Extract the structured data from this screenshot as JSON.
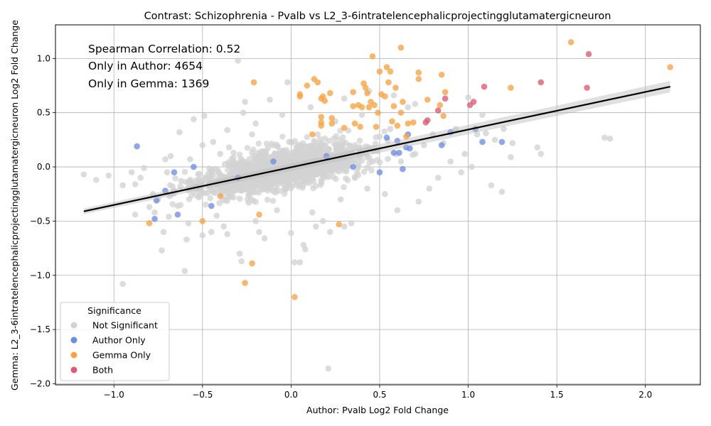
{
  "chart_data": {
    "type": "scatter",
    "title": "Contrast: Schizophrenia - Pvalb vs L2_3-6intratelencephalicprojectingglutamatergicneuron",
    "xlabel": "Author: Pvalb Log2 Fold Change",
    "ylabel": "Gemma: L2_3-6intratelencephalicprojectingglutamatergicneuron Log2 Fold Change",
    "xlim": [
      -1.33,
      2.31
    ],
    "ylim": [
      -2.01,
      1.31
    ],
    "x_ticks": [
      -1.0,
      -0.5,
      0.0,
      0.5,
      1.0,
      1.5,
      2.0
    ],
    "x_tick_labels": [
      "−1.0",
      "−0.5",
      "0.0",
      "0.5",
      "1.0",
      "1.5",
      "2.0"
    ],
    "y_ticks": [
      -2.0,
      -1.5,
      -1.0,
      -0.5,
      0.0,
      0.5,
      1.0
    ],
    "y_tick_labels": [
      "−2.0",
      "−1.5",
      "−1.0",
      "−0.5",
      "0.0",
      "0.5",
      "1.0"
    ],
    "grid": true,
    "annotations": [
      "Spearman Correlation: 0.52",
      "Only in Author: 4654",
      "Only in Gemma: 1369"
    ],
    "legend": {
      "title": "Significance",
      "placement": "lower-left",
      "entries": [
        {
          "label": "Not Significant",
          "color": "#d3d3d3"
        },
        {
          "label": "Author Only",
          "color": "#6f8de0"
        },
        {
          "label": "Gemma Only",
          "color": "#f7a345"
        },
        {
          "label": "Both",
          "color": "#dc5a75"
        }
      ]
    },
    "regression_line": {
      "x": [
        -1.17,
        2.14
      ],
      "y": [
        -0.41,
        0.74
      ],
      "color": "#000000"
    },
    "series": [
      {
        "name": "Not Significant",
        "color": "#d3d3d3",
        "points": [
          [
            -1.17,
            -0.07
          ],
          [
            -1.1,
            -0.12
          ],
          [
            -1.03,
            -0.08
          ],
          [
            -0.95,
            -0.17
          ],
          [
            -0.95,
            -1.08
          ],
          [
            -0.88,
            -0.44
          ],
          [
            -0.88,
            -0.16
          ],
          [
            -0.85,
            -0.1
          ],
          [
            -0.83,
            -0.01
          ],
          [
            -0.8,
            -0.37
          ],
          [
            -0.78,
            -0.25
          ],
          [
            -0.75,
            -0.3
          ],
          [
            -0.73,
            -0.77
          ],
          [
            -0.72,
            -0.6
          ],
          [
            -0.71,
            0.07
          ],
          [
            -0.69,
            -0.46
          ],
          [
            -0.66,
            -0.22
          ],
          [
            -0.64,
            -0.36
          ],
          [
            -0.63,
            0.32
          ],
          [
            -0.62,
            -0.13
          ],
          [
            -0.6,
            -0.96
          ],
          [
            -0.59,
            -0.67
          ],
          [
            -0.57,
            0.07
          ],
          [
            -0.55,
            0.44
          ],
          [
            -0.52,
            -0.28
          ],
          [
            -0.5,
            -0.63
          ],
          [
            -0.49,
            0.47
          ],
          [
            -0.47,
            -0.1
          ],
          [
            -0.44,
            0.23
          ],
          [
            -0.42,
            -0.45
          ],
          [
            -0.4,
            0.12
          ],
          [
            -0.38,
            -0.55
          ],
          [
            -0.35,
            0.18
          ],
          [
            -0.33,
            -0.2
          ],
          [
            -0.3,
            0.98
          ],
          [
            -0.29,
            -0.8
          ],
          [
            -0.28,
            -0.87
          ],
          [
            -0.27,
            0.5
          ],
          [
            -0.26,
            0.6
          ],
          [
            -0.24,
            -0.33
          ],
          [
            -0.22,
            0.3
          ],
          [
            -0.2,
            -0.5
          ],
          [
            -0.17,
            0.1
          ],
          [
            -0.15,
            -0.66
          ],
          [
            -0.12,
            0.62
          ],
          [
            -0.1,
            0.2
          ],
          [
            -0.08,
            -0.4
          ],
          [
            -0.06,
            0.08
          ],
          [
            -0.02,
            0.78
          ],
          [
            0.0,
            -0.61
          ],
          [
            0.02,
            -0.88
          ],
          [
            0.05,
            -0.88
          ],
          [
            0.07,
            -0.72
          ],
          [
            0.08,
            -0.76
          ],
          [
            0.1,
            0.18
          ],
          [
            0.12,
            -0.42
          ],
          [
            0.15,
            0.3
          ],
          [
            0.18,
            -0.5
          ],
          [
            0.2,
            0.1
          ],
          [
            0.21,
            -1.86
          ],
          [
            0.22,
            -0.6
          ],
          [
            0.25,
            0.42
          ],
          [
            0.28,
            -0.3
          ],
          [
            0.3,
            -0.55
          ],
          [
            0.33,
            0.2
          ],
          [
            0.36,
            -0.1
          ],
          [
            0.4,
            0.48
          ],
          [
            0.43,
            -0.2
          ],
          [
            0.46,
            0.05
          ],
          [
            0.5,
            0.28
          ],
          [
            0.53,
            -0.25
          ],
          [
            0.56,
            0.35
          ],
          [
            0.6,
            -0.4
          ],
          [
            0.62,
            0.05
          ],
          [
            0.66,
            0.55
          ],
          [
            0.7,
            0.12
          ],
          [
            0.72,
            -0.32
          ],
          [
            0.75,
            0.2
          ],
          [
            0.78,
            -0.2
          ],
          [
            0.8,
            0.3
          ],
          [
            0.83,
            -0.1
          ],
          [
            0.86,
            0.22
          ],
          [
            0.9,
            0.05
          ],
          [
            0.93,
            0.35
          ],
          [
            0.96,
            -0.05
          ],
          [
            0.98,
            0.12
          ],
          [
            1.0,
            0.64
          ],
          [
            1.02,
            0.0
          ],
          [
            1.05,
            0.3
          ],
          [
            1.08,
            0.48
          ],
          [
            1.1,
            0.31
          ],
          [
            1.13,
            -0.17
          ],
          [
            1.15,
            0.25
          ],
          [
            1.19,
            -0.23
          ],
          [
            1.2,
            0.35
          ],
          [
            1.24,
            0.09
          ],
          [
            1.25,
            0.22
          ],
          [
            1.39,
            0.18
          ],
          [
            1.41,
            0.12
          ],
          [
            1.77,
            0.27
          ],
          [
            1.8,
            0.26
          ],
          [
            -0.9,
            -0.05
          ],
          [
            -0.77,
            -0.42
          ],
          [
            -0.7,
            -0.05
          ],
          [
            -0.58,
            -0.52
          ],
          [
            -0.45,
            -0.6
          ],
          [
            -0.36,
            -0.62
          ],
          [
            -0.18,
            -0.6
          ],
          [
            0.14,
            -0.55
          ],
          [
            0.34,
            -0.52
          ],
          [
            -0.68,
            0.1
          ],
          [
            -0.5,
            0.2
          ],
          [
            -0.36,
            0.34
          ],
          [
            -0.2,
            0.4
          ],
          [
            -0.05,
            0.48
          ],
          [
            0.11,
            0.55
          ],
          [
            0.3,
            0.63
          ],
          [
            0.44,
            0.7
          ],
          [
            0.58,
            0.66
          ],
          [
            0.7,
            0.58
          ]
        ]
      },
      {
        "name": "Author Only",
        "color": "#6f8de0",
        "points": [
          [
            -0.87,
            0.19
          ],
          [
            -0.77,
            -0.48
          ],
          [
            -0.76,
            -0.31
          ],
          [
            -0.71,
            -0.22
          ],
          [
            -0.66,
            -0.05
          ],
          [
            -0.64,
            -0.44
          ],
          [
            -0.55,
            0.0
          ],
          [
            -0.45,
            -0.36
          ],
          [
            -0.3,
            -0.1
          ],
          [
            -0.1,
            0.05
          ],
          [
            0.2,
            0.1
          ],
          [
            0.35,
            0.0
          ],
          [
            0.5,
            -0.05
          ],
          [
            0.54,
            0.27
          ],
          [
            0.58,
            0.13
          ],
          [
            0.6,
            0.24
          ],
          [
            0.61,
            0.13
          ],
          [
            0.63,
            -0.02
          ],
          [
            0.65,
            0.18
          ],
          [
            0.66,
            0.3
          ],
          [
            0.67,
            0.17
          ],
          [
            0.85,
            0.2
          ],
          [
            0.9,
            0.32
          ],
          [
            1.04,
            0.35
          ],
          [
            1.08,
            0.23
          ],
          [
            1.19,
            0.23
          ]
        ]
      },
      {
        "name": "Gemma Only",
        "color": "#f7a345",
        "points": [
          [
            -0.8,
            -0.52
          ],
          [
            -0.5,
            -0.5
          ],
          [
            -0.4,
            -0.27
          ],
          [
            -0.26,
            -1.07
          ],
          [
            -0.22,
            -0.89
          ],
          [
            -0.21,
            0.78
          ],
          [
            -0.18,
            -0.44
          ],
          [
            0.02,
            -1.2
          ],
          [
            0.05,
            0.65
          ],
          [
            0.05,
            0.67
          ],
          [
            0.09,
            0.75
          ],
          [
            0.12,
            0.3
          ],
          [
            0.13,
            0.81
          ],
          [
            0.15,
            0.78
          ],
          [
            0.17,
            0.63
          ],
          [
            0.17,
            0.46
          ],
          [
            0.17,
            0.41
          ],
          [
            0.17,
            0.38
          ],
          [
            0.18,
            0.65
          ],
          [
            0.19,
            0.61
          ],
          [
            0.22,
            0.68
          ],
          [
            0.23,
            0.45
          ],
          [
            0.23,
            0.4
          ],
          [
            0.27,
            -0.53
          ],
          [
            0.3,
            0.36
          ],
          [
            0.35,
            0.69
          ],
          [
            0.35,
            0.56
          ],
          [
            0.36,
            0.4
          ],
          [
            0.38,
            0.57
          ],
          [
            0.39,
            0.37
          ],
          [
            0.4,
            0.55
          ],
          [
            0.41,
            0.77
          ],
          [
            0.42,
            0.73
          ],
          [
            0.43,
            0.68
          ],
          [
            0.44,
            0.55
          ],
          [
            0.45,
            0.6
          ],
          [
            0.46,
            1.02
          ],
          [
            0.47,
            0.57
          ],
          [
            0.48,
            0.37
          ],
          [
            0.49,
            0.5
          ],
          [
            0.5,
            0.88
          ],
          [
            0.51,
            0.67
          ],
          [
            0.53,
            0.65
          ],
          [
            0.54,
            0.92
          ],
          [
            0.55,
            0.78
          ],
          [
            0.56,
            0.88
          ],
          [
            0.57,
            0.42
          ],
          [
            0.58,
            0.56
          ],
          [
            0.59,
            0.73
          ],
          [
            0.6,
            0.38
          ],
          [
            0.62,
            1.1
          ],
          [
            0.62,
            0.5
          ],
          [
            0.63,
            0.6
          ],
          [
            0.65,
            0.28
          ],
          [
            0.66,
            0.4
          ],
          [
            0.69,
            0.41
          ],
          [
            0.72,
            0.81
          ],
          [
            0.72,
            0.87
          ],
          [
            0.77,
            0.62
          ],
          [
            0.84,
            0.57
          ],
          [
            0.85,
            0.85
          ],
          [
            0.86,
            0.47
          ],
          [
            0.87,
            0.69
          ],
          [
            1.24,
            0.73
          ],
          [
            1.58,
            1.15
          ],
          [
            2.14,
            0.92
          ]
        ]
      },
      {
        "name": "Both",
        "color": "#dc5a75",
        "points": [
          [
            0.76,
            0.41
          ],
          [
            0.77,
            0.43
          ],
          [
            0.83,
            0.52
          ],
          [
            0.87,
            0.63
          ],
          [
            1.01,
            0.57
          ],
          [
            1.03,
            0.6
          ],
          [
            1.09,
            0.74
          ],
          [
            1.41,
            0.78
          ],
          [
            1.67,
            0.73
          ],
          [
            1.68,
            1.04
          ]
        ]
      }
    ]
  }
}
